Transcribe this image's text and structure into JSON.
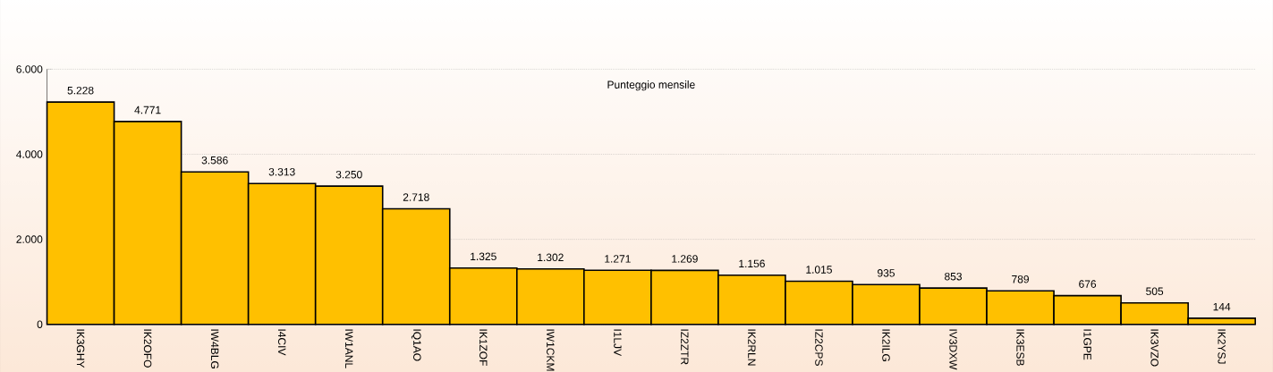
{
  "chart_data": {
    "type": "bar",
    "title": "Punteggio mensile",
    "categories": [
      "IK3GHY",
      "IK2OFO",
      "IW4BLG",
      "I4CIV",
      "IW1ANL",
      "IQ1AO",
      "IK1ZOF",
      "IW1CKM",
      "I1LJV",
      "IZ2ZTR",
      "IK2RLN",
      "IZ2CPS",
      "IK2ILG",
      "IV3DXW",
      "IK3ESB",
      "I1GPE",
      "IK3VZO",
      "IK2YSJ"
    ],
    "values": [
      5228,
      4771,
      3586,
      3313,
      3250,
      2718,
      1325,
      1302,
      1271,
      1269,
      1156,
      1015,
      935,
      853,
      789,
      676,
      505,
      144
    ],
    "value_labels": [
      "5.228",
      "4.771",
      "3.586",
      "3.313",
      "3.250",
      "2.718",
      "1.325",
      "1.302",
      "1.271",
      "1.269",
      "1.156",
      "1.015",
      "935",
      "853",
      "789",
      "676",
      "505",
      "144"
    ],
    "color": "#ffc000",
    "ylim": [
      0,
      6000
    ],
    "yticks": [
      {
        "value": 0,
        "label": "0"
      },
      {
        "value": 2000,
        "label": "2.000"
      },
      {
        "value": 4000,
        "label": "4.000"
      },
      {
        "value": 6000,
        "label": "6.000"
      }
    ],
    "grid": "y"
  }
}
